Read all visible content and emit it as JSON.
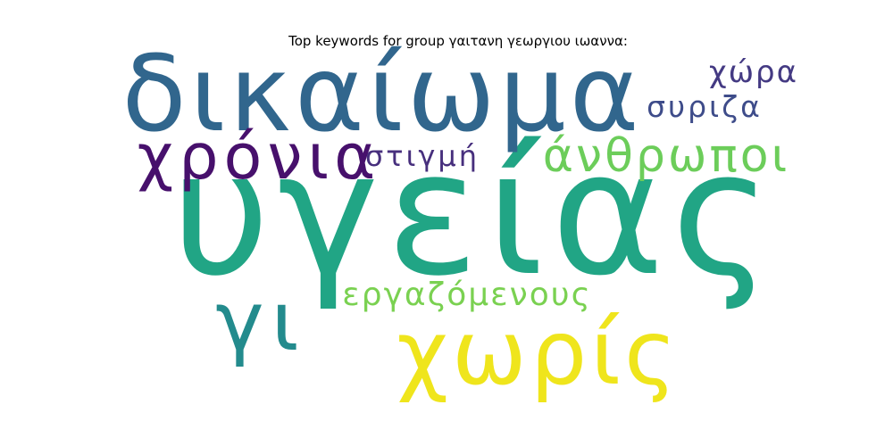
{
  "chart_data": {
    "type": "wordcloud",
    "title": "Top keywords for group γαιτανη γεωργιου ιωαννα:",
    "words": [
      {
        "text": "υγείας",
        "weight": 100,
        "color": "#21a585"
      },
      {
        "text": "δικαίωμα",
        "weight": 62,
        "color": "#31668d"
      },
      {
        "text": "χωρίς",
        "weight": 55,
        "color": "#efe51c"
      },
      {
        "text": "γι",
        "weight": 42,
        "color": "#238b8d"
      },
      {
        "text": "χρόνια",
        "weight": 38,
        "color": "#47106c"
      },
      {
        "text": "άνθρωποι",
        "weight": 34,
        "color": "#6ccd5a"
      },
      {
        "text": "εργαζόμενους",
        "weight": 24,
        "color": "#7ad151"
      },
      {
        "text": "στιγμή",
        "weight": 22,
        "color": "#472f7d"
      },
      {
        "text": "χώρα",
        "weight": 20,
        "color": "#443a83"
      },
      {
        "text": "συριζα",
        "weight": 19,
        "color": "#3e4c8a"
      }
    ]
  }
}
